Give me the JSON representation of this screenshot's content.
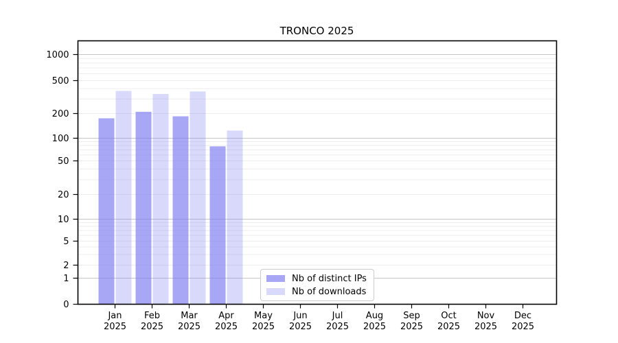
{
  "chart_data": {
    "type": "bar",
    "title": "TRONCO 2025",
    "x_tick_labels": [
      [
        "Jan",
        "2025"
      ],
      [
        "Feb",
        "2025"
      ],
      [
        "Mar",
        "2025"
      ],
      [
        "Apr",
        "2025"
      ],
      [
        "May",
        "2025"
      ],
      [
        "Jun",
        "2025"
      ],
      [
        "Jul",
        "2025"
      ],
      [
        "Aug",
        "2025"
      ],
      [
        "Sep",
        "2025"
      ],
      [
        "Oct",
        "2025"
      ],
      [
        "Nov",
        "2025"
      ],
      [
        "Dec",
        "2025"
      ]
    ],
    "y_ticks": [
      0,
      1,
      2,
      5,
      10,
      20,
      50,
      100,
      200,
      500,
      1000
    ],
    "y_scale": "log-like",
    "ylim": [
      0,
      1500
    ],
    "grid": true,
    "legend_position": "bottom-center-left",
    "series": [
      {
        "name": "Nb of distinct IPs",
        "color": "rgba(120,120,240,0.65)",
        "values": [
          175,
          210,
          185,
          78,
          null,
          null,
          null,
          null,
          null,
          null,
          null,
          null
        ]
      },
      {
        "name": "Nb of downloads",
        "color": "rgba(120,120,240,0.28)",
        "values": [
          375,
          345,
          370,
          124,
          null,
          null,
          null,
          null,
          null,
          null,
          null,
          null
        ]
      }
    ],
    "colors": {
      "bar_base": "#7878f0",
      "major_grid": "#c6c6c6",
      "minor_grid": "#ededed",
      "axis": "#000000"
    }
  }
}
